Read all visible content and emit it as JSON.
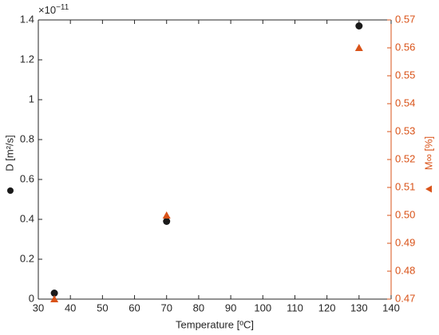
{
  "chart_data": {
    "type": "scatter",
    "x_label": "Temperature [ºC]",
    "y_exponent": {
      "base": "×10",
      "power": "−11"
    },
    "x": [
      35,
      70,
      130
    ],
    "series": [
      {
        "name": "D [m²/s]",
        "color": "#1a1a1a",
        "marker": "circle",
        "values": [
          0.03,
          0.39,
          1.37
        ]
      },
      {
        "name": "M∞ [%]",
        "color": "#d95319",
        "marker": "triangle",
        "axis": "y2",
        "values": [
          0.47,
          0.5,
          0.56
        ]
      }
    ],
    "xlim": [
      30,
      140
    ],
    "xticks": [
      30,
      40,
      50,
      60,
      70,
      80,
      90,
      100,
      110,
      120,
      130,
      140
    ],
    "ylim": [
      0,
      1.4
    ],
    "yticks": [
      0,
      0.2,
      0.4,
      0.6,
      0.8,
      1,
      1.2,
      1.4
    ],
    "y2lim": [
      0.47,
      0.57
    ],
    "y2ticks": [
      0.47,
      0.48,
      0.49,
      {
        "value": 0.5,
        "label": "0.50"
      },
      0.51,
      0.52,
      0.53,
      0.54,
      0.55,
      0.56,
      0.57
    ],
    "grid": false
  }
}
